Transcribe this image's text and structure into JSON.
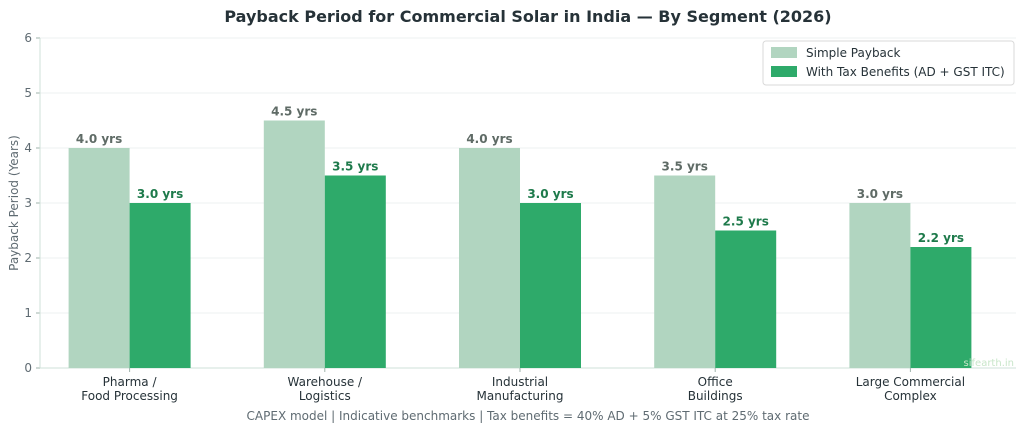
{
  "chart_data": {
    "type": "bar",
    "title": "Payback Period for Commercial Solar in India — By Segment (2026)",
    "xlabel": "",
    "ylabel": "Payback Period (Years)",
    "ylim": [
      0,
      6
    ],
    "yticks": [
      0,
      1,
      2,
      3,
      4,
      5,
      6
    ],
    "grid": "horizontal",
    "legend_position": "top-right",
    "categories": [
      [
        "Pharma /",
        "Food Processing"
      ],
      [
        "Warehouse /",
        "Logistics"
      ],
      [
        "Industrial",
        "Manufacturing"
      ],
      [
        "Office",
        "Buildings"
      ],
      [
        "Large Commercial",
        "Complex"
      ]
    ],
    "series": [
      {
        "name": "Simple Payback",
        "color": "#b1d5c0",
        "label_color": "#5f6b66",
        "values": [
          4.0,
          4.5,
          4.0,
          3.5,
          3.0
        ],
        "labels": [
          "4.0 yrs",
          "4.5 yrs",
          "4.0 yrs",
          "3.5 yrs",
          "3.0 yrs"
        ]
      },
      {
        "name": "With Tax Benefits (AD + GST ITC)",
        "color": "#2eaa6a",
        "label_color": "#1e7a4b",
        "values": [
          3.0,
          3.5,
          3.0,
          2.5,
          2.2
        ],
        "labels": [
          "3.0 yrs",
          "3.5 yrs",
          "3.0 yrs",
          "2.5 yrs",
          "2.2 yrs"
        ]
      }
    ],
    "footnote": "CAPEX model  |  Indicative benchmarks  |  Tax benefits = 40% AD + 5% GST ITC at 25% tax rate",
    "watermark": "sifearth.in"
  }
}
